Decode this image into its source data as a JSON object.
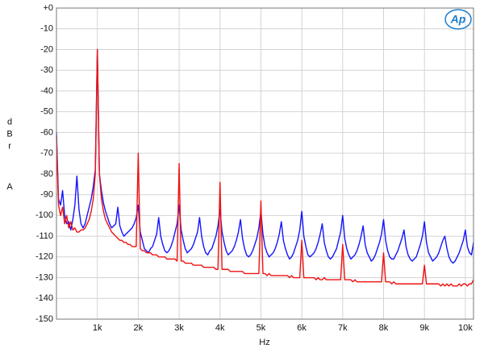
{
  "chart_data": {
    "type": "line",
    "xlabel": "Hz",
    "ylabel": [
      "dBr",
      "A"
    ],
    "logo": "Ap",
    "x": [
      0,
      50,
      100,
      150,
      200,
      250,
      300,
      350,
      400,
      450,
      500,
      550,
      600,
      650,
      700,
      750,
      800,
      850,
      900,
      950,
      1000,
      1050,
      1100,
      1150,
      1200,
      1250,
      1300,
      1350,
      1400,
      1450,
      1500,
      1550,
      1600,
      1650,
      1700,
      1750,
      1800,
      1850,
      1900,
      1950,
      2000,
      2050,
      2100,
      2150,
      2200,
      2250,
      2300,
      2350,
      2400,
      2450,
      2500,
      2550,
      2600,
      2650,
      2700,
      2750,
      2800,
      2850,
      2900,
      2950,
      3000,
      3050,
      3100,
      3150,
      3200,
      3250,
      3300,
      3350,
      3400,
      3450,
      3500,
      3550,
      3600,
      3650,
      3700,
      3750,
      3800,
      3850,
      3900,
      3950,
      4000,
      4050,
      4100,
      4150,
      4200,
      4250,
      4300,
      4350,
      4400,
      4450,
      4500,
      4550,
      4600,
      4650,
      4700,
      4750,
      4800,
      4850,
      4900,
      4950,
      5000,
      5050,
      5100,
      5150,
      5200,
      5250,
      5300,
      5350,
      5400,
      5450,
      5500,
      5550,
      5600,
      5650,
      5700,
      5750,
      5800,
      5850,
      5900,
      5950,
      6000,
      6050,
      6100,
      6150,
      6200,
      6250,
      6300,
      6350,
      6400,
      6450,
      6500,
      6550,
      6600,
      6650,
      6700,
      6750,
      6800,
      6850,
      6900,
      6950,
      7000,
      7050,
      7100,
      7150,
      7200,
      7250,
      7300,
      7350,
      7400,
      7450,
      7500,
      7550,
      7600,
      7650,
      7700,
      7750,
      7800,
      7850,
      7900,
      7950,
      8000,
      8050,
      8100,
      8150,
      8200,
      8250,
      8300,
      8350,
      8400,
      8450,
      8500,
      8550,
      8600,
      8650,
      8700,
      8750,
      8800,
      8850,
      8900,
      8950,
      9000,
      9050,
      9100,
      9150,
      9200,
      9250,
      9300,
      9350,
      9400,
      9450,
      9500,
      9550,
      9600,
      9650,
      9700,
      9750,
      9800,
      9850,
      9900,
      9950,
      10000,
      10050,
      10100,
      10150,
      10200
    ],
    "series": [
      {
        "color": "#1414ff",
        "values": [
          -60,
          -92,
          -95,
          -88,
          -100,
          -104,
          -103,
          -107,
          -102,
          -95,
          -81,
          -97,
          -104,
          -106,
          -104,
          -100,
          -96,
          -92,
          -86,
          -78,
          -20,
          -80,
          -88,
          -94,
          -98,
          -101,
          -104,
          -106,
          -105,
          -104,
          -96,
          -105,
          -108,
          -110,
          -109,
          -108,
          -107,
          -106,
          -104,
          -101,
          -95,
          -108,
          -112,
          -116,
          -117,
          -118,
          -116,
          -115,
          -112,
          -109,
          -101,
          -110,
          -114,
          -117,
          -118,
          -117,
          -115,
          -112,
          -108,
          -104,
          -95,
          -107,
          -112,
          -116,
          -118,
          -117,
          -116,
          -114,
          -111,
          -108,
          -101,
          -110,
          -115,
          -118,
          -119,
          -117,
          -116,
          -113,
          -110,
          -105,
          -97,
          -108,
          -113,
          -117,
          -119,
          -118,
          -117,
          -115,
          -112,
          -108,
          -102,
          -111,
          -116,
          -119,
          -120,
          -119,
          -117,
          -114,
          -111,
          -106,
          -98,
          -109,
          -115,
          -118,
          -120,
          -119,
          -118,
          -116,
          -113,
          -109,
          -103,
          -112,
          -116,
          -119,
          -121,
          -120,
          -118,
          -115,
          -112,
          -107,
          -98,
          -110,
          -115,
          -119,
          -120,
          -119,
          -118,
          -116,
          -113,
          -109,
          -104,
          -113,
          -117,
          -120,
          -121,
          -120,
          -118,
          -116,
          -112,
          -108,
          -100,
          -111,
          -116,
          -119,
          -121,
          -120,
          -119,
          -117,
          -114,
          -110,
          -105,
          -114,
          -118,
          -120,
          -122,
          -121,
          -119,
          -116,
          -113,
          -109,
          -102,
          -112,
          -117,
          -120,
          -121,
          -121,
          -119,
          -117,
          -114,
          -111,
          -107,
          -115,
          -119,
          -121,
          -122,
          -121,
          -120,
          -117,
          -114,
          -110,
          -103,
          -113,
          -118,
          -120,
          -122,
          -121,
          -120,
          -118,
          -115,
          -112,
          -110,
          -116,
          -120,
          -122,
          -123,
          -122,
          -120,
          -118,
          -115,
          -112,
          -107,
          -115,
          -118,
          -119,
          -113
        ]
      },
      {
        "color": "#ee1111",
        "values": [
          -62,
          -95,
          -100,
          -96,
          -104,
          -100,
          -106,
          -103,
          -107,
          -106,
          -108,
          -108,
          -107,
          -107,
          -106,
          -104,
          -102,
          -98,
          -92,
          -80,
          -20,
          -80,
          -92,
          -98,
          -102,
          -104,
          -106,
          -108,
          -109,
          -110,
          -111,
          -112,
          -112,
          -113,
          -113,
          -114,
          -114,
          -115,
          -115,
          -115,
          -70,
          -116,
          -117,
          -117,
          -118,
          -118,
          -118,
          -119,
          -119,
          -119,
          -120,
          -120,
          -120,
          -120,
          -121,
          -121,
          -121,
          -121,
          -121,
          -122,
          -75,
          -122,
          -122,
          -123,
          -123,
          -123,
          -123,
          -124,
          -124,
          -124,
          -124,
          -124,
          -125,
          -125,
          -125,
          -125,
          -125,
          -125,
          -126,
          -126,
          -84,
          -126,
          -126,
          -126,
          -126,
          -127,
          -127,
          -127,
          -127,
          -127,
          -127,
          -127,
          -128,
          -128,
          -128,
          -128,
          -128,
          -128,
          -128,
          -128,
          -93,
          -128,
          -128,
          -129,
          -128,
          -129,
          -129,
          -129,
          -129,
          -129,
          -129,
          -129,
          -129,
          -129,
          -130,
          -129,
          -130,
          -130,
          -130,
          -130,
          -112,
          -130,
          -130,
          -130,
          -130,
          -130,
          -130,
          -131,
          -130,
          -131,
          -131,
          -130,
          -131,
          -131,
          -131,
          -131,
          -131,
          -131,
          -131,
          -131,
          -114,
          -131,
          -131,
          -131,
          -131,
          -132,
          -131,
          -132,
          -132,
          -132,
          -132,
          -132,
          -132,
          -132,
          -132,
          -132,
          -132,
          -132,
          -132,
          -132,
          -118,
          -132,
          -132,
          -132,
          -133,
          -132,
          -133,
          -133,
          -133,
          -133,
          -133,
          -133,
          -133,
          -133,
          -133,
          -133,
          -133,
          -133,
          -133,
          -133,
          -124,
          -133,
          -133,
          -133,
          -133,
          -133,
          -133,
          -133,
          -134,
          -133,
          -134,
          -133,
          -134,
          -133,
          -134,
          -134,
          -134,
          -133,
          -134,
          -133,
          -133,
          -134,
          -133,
          -133,
          -131
        ]
      }
    ],
    "xlim": [
      0,
      10200
    ],
    "ylim": [
      -150,
      0
    ],
    "xticks": [
      {
        "value": 1000,
        "label": "1k"
      },
      {
        "value": 2000,
        "label": "2k"
      },
      {
        "value": 3000,
        "label": "3k"
      },
      {
        "value": 4000,
        "label": "4k"
      },
      {
        "value": 5000,
        "label": "5k"
      },
      {
        "value": 6000,
        "label": "6k"
      },
      {
        "value": 7000,
        "label": "7k"
      },
      {
        "value": 8000,
        "label": "8k"
      },
      {
        "value": 9000,
        "label": "9k"
      },
      {
        "value": 10000,
        "label": "10k"
      }
    ],
    "yticks": [
      {
        "value": 0,
        "label": "+0"
      },
      -10,
      -20,
      -30,
      -40,
      -50,
      -60,
      -70,
      -80,
      -90,
      -100,
      -110,
      -120,
      -130,
      -140,
      -150
    ],
    "grid": true
  }
}
